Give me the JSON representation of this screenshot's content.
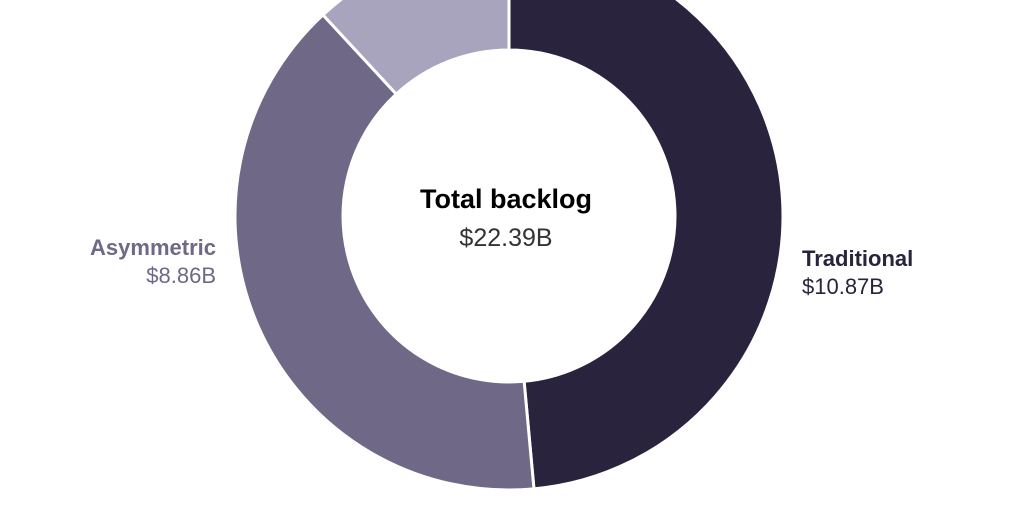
{
  "chart_data": {
    "type": "pie",
    "variant": "donut",
    "center_label": "Total backlog",
    "center_value": "$22.39B",
    "total": 22.39,
    "slices": [
      {
        "label": "Traditional",
        "value": 10.87,
        "display_value": "$10.87B",
        "color": "#29233d",
        "label_color": "#29233d",
        "show_label": true
      },
      {
        "label": "Asymmetric",
        "value": 8.86,
        "display_value": "$8.86B",
        "color": "#6f6886",
        "label_color": "#6f6886",
        "show_label": true
      },
      {
        "label": "",
        "value": 2.66,
        "display_value": "",
        "color": "#a8a4bd",
        "label_color": "#a8a4bd",
        "show_label": false
      }
    ],
    "legend": "none",
    "grid": false
  }
}
